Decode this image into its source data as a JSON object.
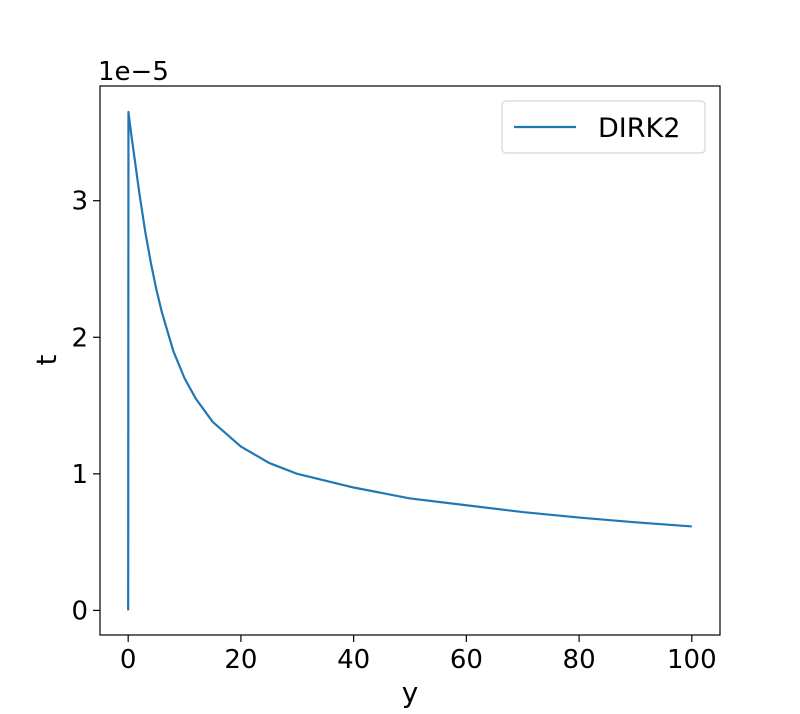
{
  "chart_data": {
    "type": "line",
    "xlabel": "y",
    "ylabel": "t",
    "offset_label": "1e−5",
    "xlim": [
      -5,
      105
    ],
    "ylim": [
      -0.18,
      3.84
    ],
    "x_ticks": [
      0,
      20,
      40,
      60,
      80,
      100
    ],
    "x_tick_labels": [
      "0",
      "20",
      "40",
      "60",
      "80",
      "100"
    ],
    "y_ticks": [
      0,
      1,
      2,
      3
    ],
    "y_tick_labels": [
      "0",
      "1",
      "2",
      "3"
    ],
    "grid": false,
    "legend_position": "top-right",
    "series": [
      {
        "name": "DIRK2",
        "color": "#1f77b4",
        "x": [
          0,
          0.05,
          0.2,
          0.5,
          1,
          2,
          3,
          4,
          5,
          6,
          8,
          10,
          12,
          15,
          20,
          25,
          30,
          40,
          50,
          60,
          70,
          80,
          90,
          100
        ],
        "y": [
          0,
          3.65,
          3.6,
          3.5,
          3.35,
          3.05,
          2.78,
          2.55,
          2.35,
          2.18,
          1.9,
          1.7,
          1.55,
          1.38,
          1.2,
          1.08,
          1.0,
          0.9,
          0.82,
          0.77,
          0.72,
          0.68,
          0.645,
          0.615
        ]
      }
    ]
  }
}
